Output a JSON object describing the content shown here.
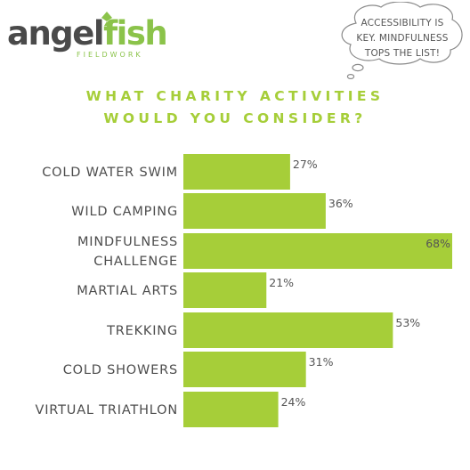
{
  "brand": {
    "name_part1": "angel",
    "name_part2": "fish",
    "tagline": "FIELDWORK",
    "colors": {
      "dark": "#4a4a4a",
      "accent": "#8bc34a"
    }
  },
  "callout": {
    "lines": [
      "ACCESSIBILITY IS",
      "KEY. MINDFULNESS",
      "TOPS THE LIST!"
    ],
    "icon": "thought-bubble-icon"
  },
  "chart_data": {
    "type": "bar",
    "orientation": "horizontal",
    "title_lines": [
      "WHAT CHARITY ACTIVITIES",
      "WOULD YOU CONSIDER?"
    ],
    "categories": [
      [
        "COLD WATER SWIM"
      ],
      [
        "WILD CAMPING"
      ],
      [
        "MINDFULNESS",
        "CHALLENGE"
      ],
      [
        "MARTIAL ARTS"
      ],
      [
        "TREKKING"
      ],
      [
        "COLD SHOWERS"
      ],
      [
        "VIRTUAL TRIATHLON"
      ]
    ],
    "values": [
      27,
      36,
      68,
      21,
      53,
      31,
      24
    ],
    "value_labels": [
      "27%",
      "36%",
      "68%",
      "21%",
      "53%",
      "31%",
      "24%"
    ],
    "xlim": [
      0,
      68
    ],
    "grid": false,
    "bar_color": "#a6ce39"
  }
}
